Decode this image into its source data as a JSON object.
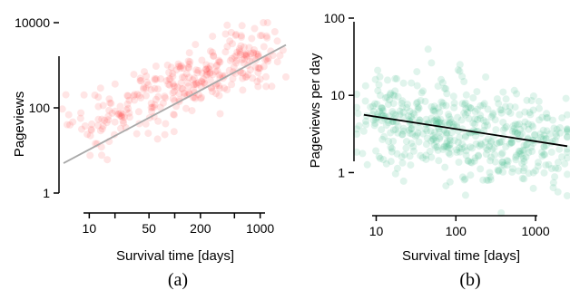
{
  "chart_data": [
    {
      "type": "scatter",
      "caption": "(a)",
      "xlabel": "Survival time [days]",
      "ylabel": "Pageviews",
      "x_scale": "log",
      "y_scale": "log",
      "xlim": [
        5,
        2000
      ],
      "ylim": [
        1,
        10000
      ],
      "x_ticks": [
        10,
        20,
        50,
        100,
        200,
        500,
        1000
      ],
      "x_tick_labels": [
        "10",
        "",
        "50",
        "",
        "200",
        "",
        "1000"
      ],
      "y_ticks": [
        1,
        100,
        10000
      ],
      "y_tick_labels": [
        "1",
        "100",
        "10000"
      ],
      "point_color": "#ff2a2a",
      "fit_line_color": "#a9a9a9",
      "grid": false,
      "trend": {
        "x": [
          5,
          2000
        ],
        "y": [
          5,
          3000
        ]
      },
      "clusters": [
        {
          "x": 10,
          "y": 40,
          "n": 30
        },
        {
          "x": 20,
          "y": 70,
          "n": 35
        },
        {
          "x": 50,
          "y": 150,
          "n": 45
        },
        {
          "x": 100,
          "y": 280,
          "n": 55
        },
        {
          "x": 200,
          "y": 500,
          "n": 60
        },
        {
          "x": 500,
          "y": 1100,
          "n": 60
        },
        {
          "x": 1000,
          "y": 2000,
          "n": 50
        }
      ]
    },
    {
      "type": "scatter",
      "caption": "(b)",
      "xlabel": "Survival time [days]",
      "ylabel": "Pageviews per day",
      "x_scale": "log",
      "y_scale": "log",
      "xlim": [
        6,
        2500
      ],
      "ylim": [
        0.3,
        100
      ],
      "x_ticks": [
        10,
        100,
        1000
      ],
      "x_tick_labels": [
        "10",
        "100",
        "1000"
      ],
      "y_ticks": [
        1,
        10,
        100
      ],
      "y_tick_labels": [
        "1",
        "10",
        "100"
      ],
      "point_color": "#3cb88a",
      "fit_line_color": "#000000",
      "grid": false,
      "trend": {
        "x": [
          7,
          2500
        ],
        "y": [
          5.6,
          2.2
        ]
      },
      "clusters": [
        {
          "x": 10,
          "y": 5.0,
          "n": 60
        },
        {
          "x": 20,
          "y": 4.5,
          "n": 70
        },
        {
          "x": 50,
          "y": 4.0,
          "n": 80
        },
        {
          "x": 100,
          "y": 3.5,
          "n": 80
        },
        {
          "x": 200,
          "y": 3.2,
          "n": 80
        },
        {
          "x": 500,
          "y": 2.8,
          "n": 70
        },
        {
          "x": 1000,
          "y": 2.6,
          "n": 60
        },
        {
          "x": 2000,
          "y": 2.4,
          "n": 40
        }
      ]
    }
  ]
}
